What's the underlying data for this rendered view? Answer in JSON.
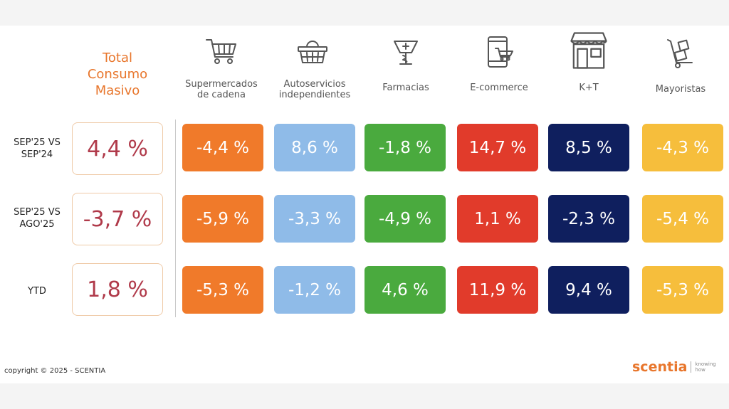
{
  "total": {
    "title_lines": [
      "Total",
      "Consumo",
      "Masivo"
    ],
    "color": "#e8762c",
    "value_color": "#b03a4a"
  },
  "channels": [
    {
      "label_lines": [
        "Supermercados",
        "de cadena"
      ],
      "icon": "shopping-cart-icon",
      "color": "#f07a2a"
    },
    {
      "label_lines": [
        "Autoservicios",
        "independientes"
      ],
      "icon": "shopping-basket-icon",
      "color": "#8fbbe8"
    },
    {
      "label_lines": [
        "Farmacias"
      ],
      "icon": "pharmacy-icon",
      "color": "#4aaa3e"
    },
    {
      "label_lines": [
        "E-commerce"
      ],
      "icon": "mobile-cart-icon",
      "color": "#e13b2b"
    },
    {
      "label_lines": [
        "K+T"
      ],
      "icon": "storefront-icon",
      "color": "#0f1f5e"
    },
    {
      "label_lines": [
        "Mayoristas"
      ],
      "icon": "hand-truck-icon",
      "color": "#f6be3c"
    }
  ],
  "rows": [
    {
      "label_lines": [
        "SEP'25 VS",
        "SEP'24"
      ],
      "total": "4,4 %",
      "values": [
        "-4,4 %",
        "8,6 %",
        "-1,8 %",
        "14,7 %",
        "8,5 %",
        "-4,3 %"
      ]
    },
    {
      "label_lines": [
        "SEP'25 VS",
        "AGO'25"
      ],
      "total": "-3,7 %",
      "values": [
        "-5,9 %",
        "-3,3 %",
        "-4,9 %",
        "1,1 %",
        "-2,3 %",
        "-5,4 %"
      ]
    },
    {
      "label_lines": [
        "YTD"
      ],
      "total": "1,8 %",
      "values": [
        "-5,3 %",
        "-1,2 %",
        "4,6 %",
        "11,9 %",
        "9,4 %",
        "-5,3 %"
      ]
    }
  ],
  "chart_data": {
    "type": "table",
    "categories": [
      "Total Consumo Masivo",
      "Supermercados de cadena",
      "Autoservicios independientes",
      "Farmacias",
      "E-commerce",
      "K+T",
      "Mayoristas"
    ],
    "series": [
      {
        "name": "SEP'25 VS SEP'24",
        "values": [
          4.4,
          -4.4,
          8.6,
          -1.8,
          14.7,
          8.5,
          -4.3
        ]
      },
      {
        "name": "SEP'25 VS AGO'25",
        "values": [
          -3.7,
          -5.9,
          -3.3,
          -4.9,
          1.1,
          -2.3,
          -5.4
        ]
      },
      {
        "name": "YTD",
        "values": [
          1.8,
          -5.3,
          -1.2,
          4.6,
          11.9,
          9.4,
          -5.3
        ]
      }
    ],
    "unit": "%"
  },
  "footer": {
    "copyright": "copyright © 2025 - SCENTIA",
    "logo_word": "scentia",
    "logo_tag_lines": [
      "knowing",
      "how"
    ]
  }
}
